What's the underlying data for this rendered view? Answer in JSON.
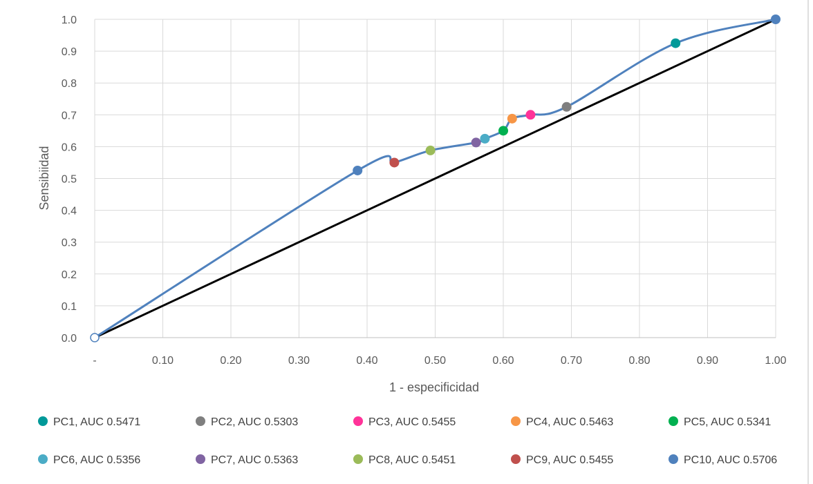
{
  "chart_data": {
    "type": "line",
    "title": "",
    "xlabel": "1 - especificidad",
    "ylabel": "Sensibiidad",
    "xlim": [
      0,
      1
    ],
    "ylim": [
      0,
      1
    ],
    "grid": true,
    "x_ticks": [
      "-",
      "0.10",
      "0.20",
      "0.30",
      "0.40",
      "0.50",
      "0.60",
      "0.70",
      "0.80",
      "0.90",
      "1.00"
    ],
    "y_ticks": [
      "0.0",
      "0.1",
      "0.2",
      "0.3",
      "0.4",
      "0.5",
      "0.6",
      "0.7",
      "0.8",
      "0.9",
      "1.0"
    ],
    "roc_curve": {
      "color": "#4f81bd",
      "x": [
        0,
        0.386,
        0.44,
        0.493,
        0.56,
        0.573,
        0.6,
        0.613,
        0.64,
        0.693,
        0.853,
        1.0
      ],
      "y": [
        0,
        0.525,
        0.55,
        0.588,
        0.613,
        0.625,
        0.65,
        0.688,
        0.7,
        0.725,
        0.925,
        1.0
      ]
    },
    "diagonal": {
      "color": "#000000",
      "x": [
        0,
        1
      ],
      "y": [
        0,
        1
      ]
    },
    "series": [
      {
        "name": "PC1, AUC 0.5471",
        "color": "#009999",
        "x": 0.853,
        "y": 0.925
      },
      {
        "name": "PC2, AUC 0.5303",
        "color": "#7f7f7f",
        "x": 0.693,
        "y": 0.725
      },
      {
        "name": "PC3, AUC 0.5455",
        "color": "#ff3399",
        "x": 0.64,
        "y": 0.7
      },
      {
        "name": "PC4, AUC 0.5463",
        "color": "#f79646",
        "x": 0.613,
        "y": 0.688
      },
      {
        "name": "PC5, AUC 0.5341",
        "color": "#00b050",
        "x": 0.6,
        "y": 0.65
      },
      {
        "name": "PC6, AUC 0.5356",
        "color": "#4bacc6",
        "x": 0.573,
        "y": 0.625
      },
      {
        "name": "PC7, AUC 0.5363",
        "color": "#8064a2",
        "x": 0.56,
        "y": 0.613
      },
      {
        "name": "PC8, AUC 0.5451",
        "color": "#9bbb59",
        "x": 0.493,
        "y": 0.588
      },
      {
        "name": "PC9, AUC 0.5455",
        "color": "#c0504d",
        "x": 0.44,
        "y": 0.55
      },
      {
        "name": "PC10, AUC 0.5706",
        "color": "#4f81bd",
        "x": 0.386,
        "y": 0.525
      }
    ],
    "extra_markers": [
      {
        "x": 1.0,
        "y": 1.0,
        "color": "#4f81bd",
        "style": "filled"
      },
      {
        "x": 0,
        "y": 0,
        "color": "#4f81bd",
        "style": "hollow"
      }
    ],
    "legend": "bottom"
  }
}
